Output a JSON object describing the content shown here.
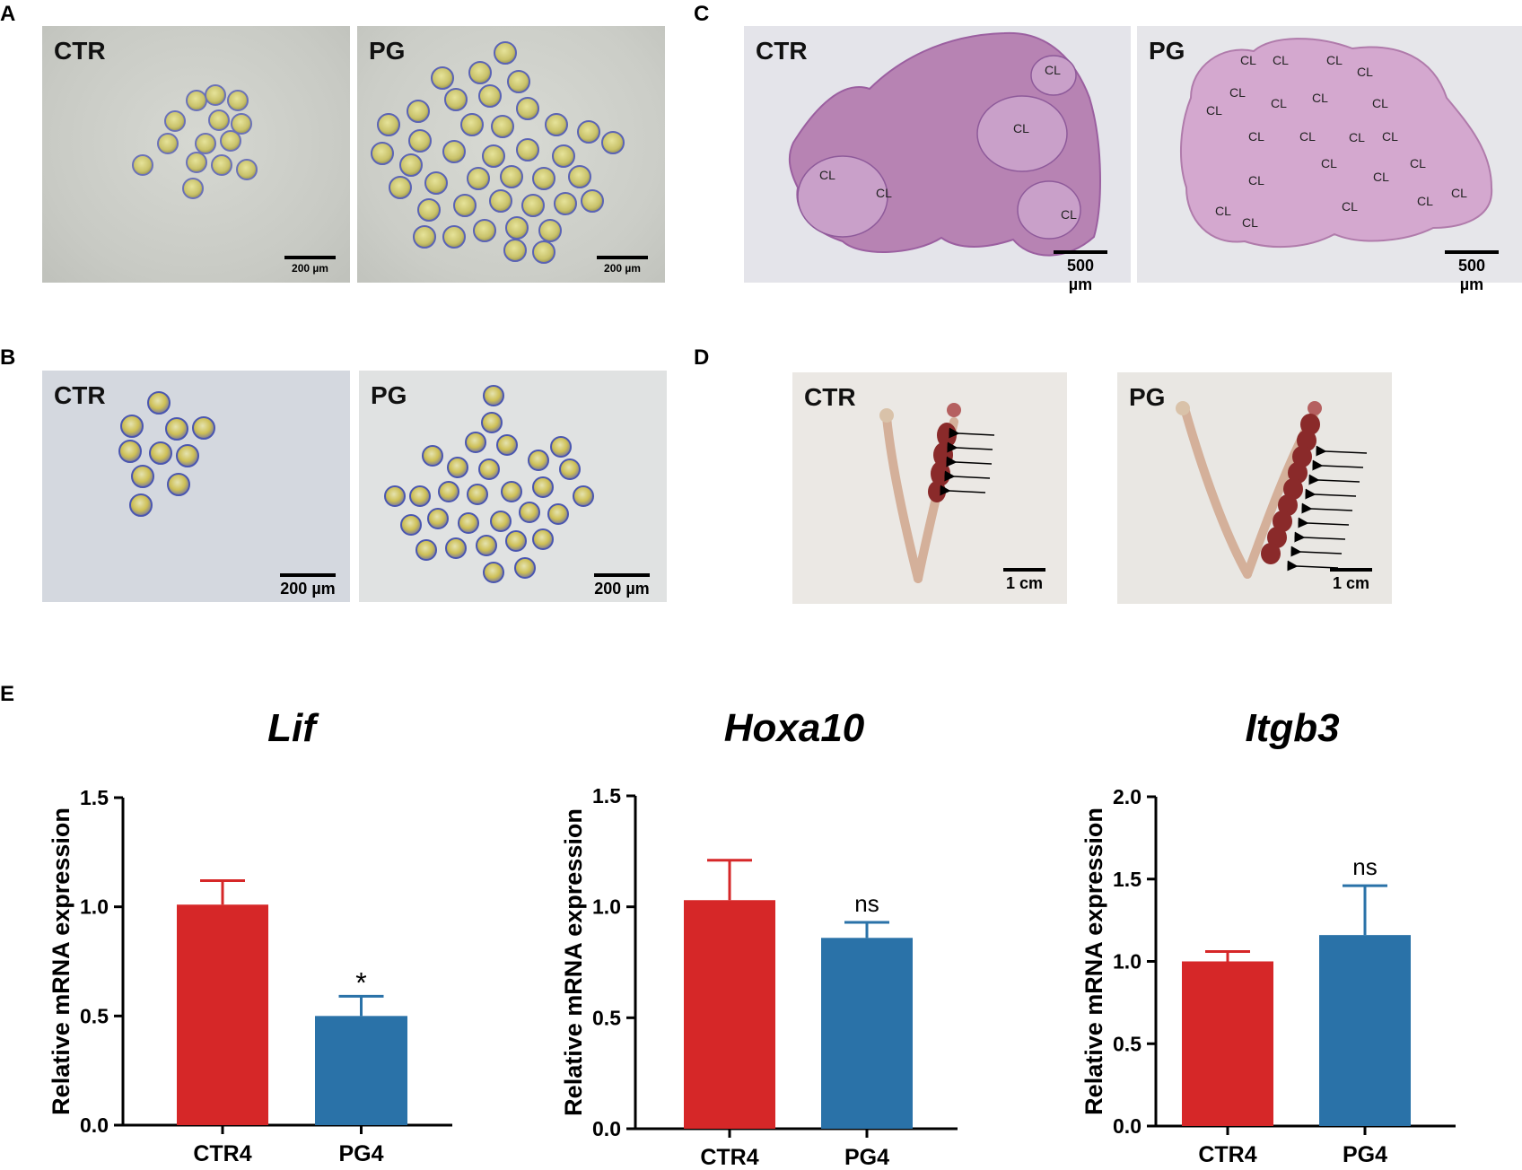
{
  "panels": {
    "A": {
      "letter": "A",
      "left_label": "CTR",
      "right_label": "PG",
      "scale": "200 µm"
    },
    "B": {
      "letter": "B",
      "left_label": "CTR",
      "right_label": "PG",
      "scale": "200 µm"
    },
    "C": {
      "letter": "C",
      "left_label": "CTR",
      "right_label": "PG",
      "scale": "500 µm",
      "region_label": "CL"
    },
    "D": {
      "letter": "D",
      "left_label": "CTR",
      "right_label": "PG",
      "scale": "1 cm"
    },
    "E": {
      "letter": "E"
    }
  },
  "chart_data": [
    {
      "type": "bar",
      "title": "Lif",
      "ylabel": "Relative mRNA expression",
      "categories": [
        "CTR4",
        "PG4"
      ],
      "values": [
        1.01,
        0.5
      ],
      "errors": [
        0.11,
        0.09
      ],
      "colors": [
        "#d62728",
        "#2a72a8"
      ],
      "ylim": [
        0,
        1.5
      ],
      "yticks": [
        "0.0",
        "0.5",
        "1.0",
        "1.5"
      ],
      "annotations": [
        "",
        "*"
      ]
    },
    {
      "type": "bar",
      "title": "Hoxa10",
      "ylabel": "Relative mRNA expression",
      "categories": [
        "CTR4",
        "PG4"
      ],
      "values": [
        1.03,
        0.86
      ],
      "errors": [
        0.18,
        0.07
      ],
      "colors": [
        "#d62728",
        "#2a72a8"
      ],
      "ylim": [
        0,
        1.5
      ],
      "yticks": [
        "0.0",
        "0.5",
        "1.0",
        "1.5"
      ],
      "annotations": [
        "",
        "ns"
      ]
    },
    {
      "type": "bar",
      "title": "Itgb3",
      "ylabel": "Relative mRNA expression",
      "categories": [
        "CTR4",
        "PG4"
      ],
      "values": [
        1.0,
        1.16
      ],
      "errors": [
        0.06,
        0.3
      ],
      "colors": [
        "#d62728",
        "#2a72a8"
      ],
      "ylim": [
        0,
        2.0
      ],
      "yticks": [
        "0.0",
        "0.5",
        "1.0",
        "1.5",
        "2.0"
      ],
      "annotations": [
        "",
        "ns"
      ]
    }
  ]
}
